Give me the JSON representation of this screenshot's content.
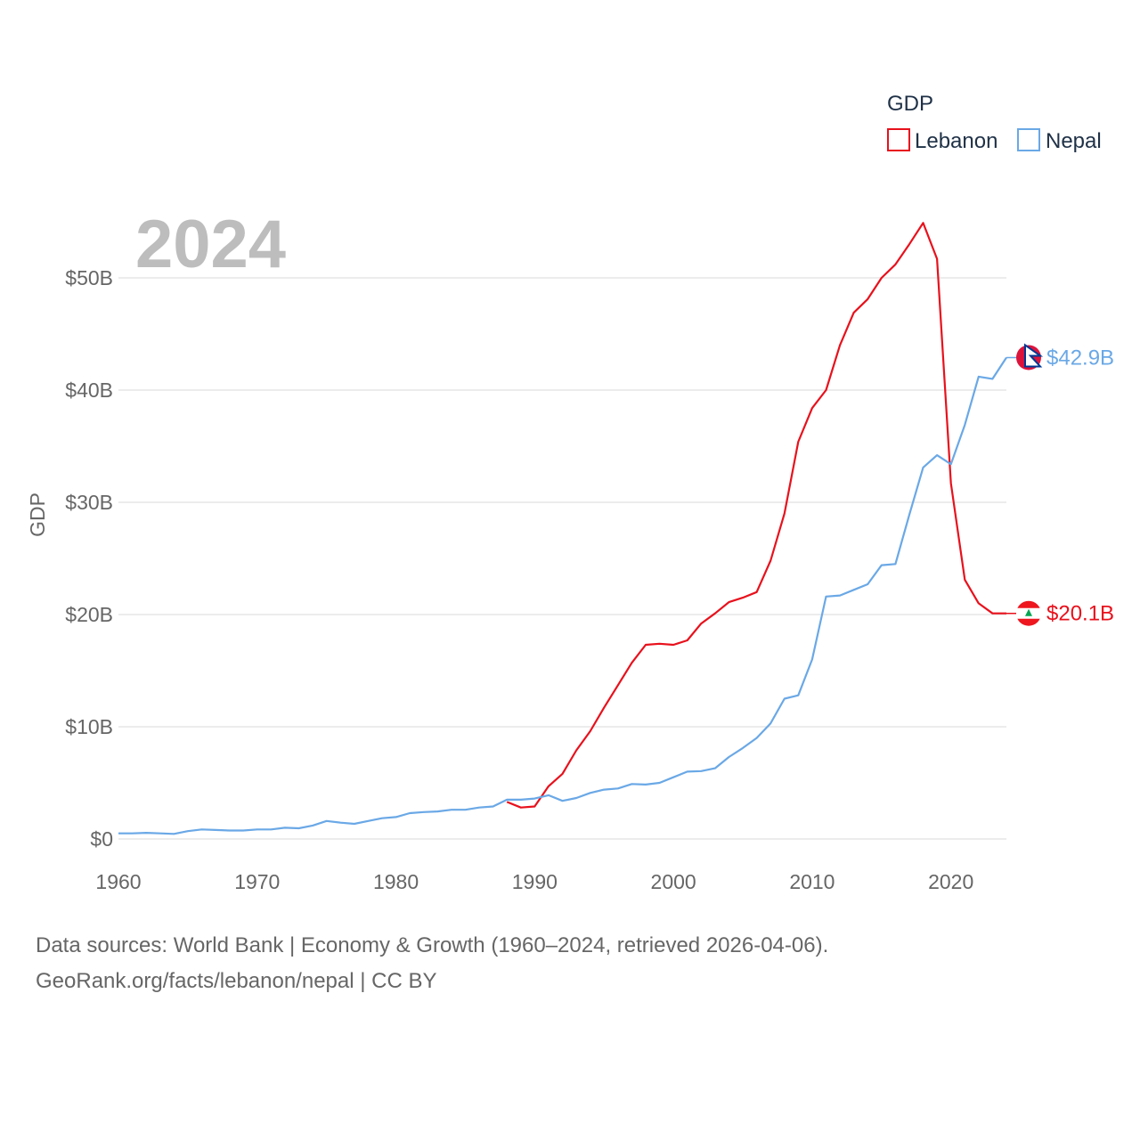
{
  "chart_data": {
    "type": "line",
    "title": "GDP",
    "year_label": "2024",
    "ylabel": "GDP",
    "xlabel": "",
    "xlim": [
      1960,
      2024
    ],
    "ylim": [
      0,
      55
    ],
    "y_unit": "billion USD",
    "x_ticks": [
      1960,
      1970,
      1980,
      1990,
      2000,
      2010,
      2020
    ],
    "x_tick_labels": [
      "1960",
      "1970",
      "1980",
      "1990",
      "2000",
      "2010",
      "2020"
    ],
    "y_ticks": [
      0,
      10,
      20,
      30,
      40,
      50
    ],
    "y_tick_labels": [
      "$0",
      "$10B",
      "$20B",
      "$30B",
      "$40B",
      "$50B"
    ],
    "grid": true,
    "legend": {
      "title": "GDP",
      "position": "top-right"
    },
    "series": [
      {
        "name": "Lebanon",
        "color": "#e8111c",
        "end_label": "$20.1B",
        "x": [
          1988,
          1989,
          1990,
          1991,
          1992,
          1993,
          1994,
          1995,
          1996,
          1997,
          1998,
          1999,
          2000,
          2001,
          2002,
          2003,
          2004,
          2005,
          2006,
          2007,
          2008,
          2009,
          2010,
          2011,
          2012,
          2013,
          2014,
          2015,
          2016,
          2017,
          2018,
          2019,
          2020,
          2021,
          2022,
          2023,
          2024
        ],
        "values": [
          3.3,
          2.8,
          2.9,
          4.7,
          5.8,
          7.9,
          9.6,
          11.7,
          13.7,
          15.7,
          17.3,
          17.4,
          17.3,
          17.7,
          19.2,
          20.1,
          21.1,
          21.5,
          22.0,
          24.8,
          29.0,
          35.4,
          38.4,
          40.0,
          44.0,
          46.9,
          48.1,
          50.0,
          51.2,
          53.0,
          54.9,
          51.7,
          31.7,
          23.1,
          21.0,
          20.1,
          20.1
        ]
      },
      {
        "name": "Nepal",
        "color": "#6aa8e6",
        "end_label": "$42.9B",
        "x": [
          1960,
          1961,
          1962,
          1963,
          1964,
          1965,
          1966,
          1967,
          1968,
          1969,
          1970,
          1971,
          1972,
          1973,
          1974,
          1975,
          1976,
          1977,
          1978,
          1979,
          1980,
          1981,
          1982,
          1983,
          1984,
          1985,
          1986,
          1987,
          1988,
          1989,
          1990,
          1991,
          1992,
          1993,
          1994,
          1995,
          1996,
          1997,
          1998,
          1999,
          2000,
          2001,
          2002,
          2003,
          2004,
          2005,
          2006,
          2007,
          2008,
          2009,
          2010,
          2011,
          2012,
          2013,
          2014,
          2015,
          2016,
          2017,
          2018,
          2019,
          2020,
          2021,
          2022,
          2023,
          2024
        ],
        "values": [
          0.5,
          0.5,
          0.55,
          0.5,
          0.45,
          0.7,
          0.85,
          0.8,
          0.75,
          0.75,
          0.85,
          0.85,
          1.0,
          0.95,
          1.2,
          1.6,
          1.45,
          1.35,
          1.6,
          1.85,
          1.95,
          2.3,
          2.4,
          2.45,
          2.6,
          2.6,
          2.8,
          2.9,
          3.5,
          3.5,
          3.6,
          3.9,
          3.4,
          3.65,
          4.1,
          4.4,
          4.5,
          4.9,
          4.85,
          5.0,
          5.5,
          6.0,
          6.05,
          6.3,
          7.3,
          8.1,
          9.0,
          10.3,
          12.5,
          12.8,
          16.0,
          21.6,
          21.7,
          22.2,
          22.7,
          24.4,
          24.5,
          28.9,
          33.1,
          34.2,
          33.4,
          36.9,
          41.2,
          41.0,
          42.9
        ]
      }
    ]
  },
  "source_line_1": "Data sources: World Bank | Economy & Growth (1960–2024, retrieved 2026-04-06).",
  "source_line_2": "GeoRank.org/facts/lebanon/nepal | CC BY",
  "flags": {
    "lebanon": "lebanon-flag-icon",
    "nepal": "nepal-flag-icon"
  },
  "colors": {
    "grid": "#e6e6e6",
    "year": "#bdbdbd",
    "text": "#666666",
    "legend_text": "#1f3147"
  }
}
